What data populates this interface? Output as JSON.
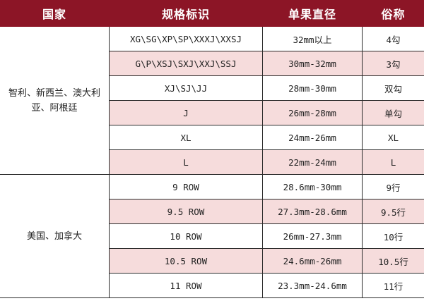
{
  "headers": [
    "国家",
    "规格标识",
    "单果直径",
    "俗称"
  ],
  "colors": {
    "header_bg": "#8c1526",
    "alt_row_bg": "#f6dcdc"
  },
  "groups": [
    {
      "country": "智利、新西兰、澳大利亚、阿根廷",
      "rows": [
        {
          "spec": "XG\\SG\\XP\\SP\\XXXJ\\XXSJ",
          "diameter": "32mm以上",
          "name": "4勾"
        },
        {
          "spec": "G\\P\\XSJ\\SXJ\\XXJ\\SSJ",
          "diameter": "30mm-32mm",
          "name": "3勾"
        },
        {
          "spec": "XJ\\SJ\\JJ",
          "diameter": "28mm-30mm",
          "name": "双勾"
        },
        {
          "spec": "J",
          "diameter": "26mm-28mm",
          "name": "单勾"
        },
        {
          "spec": "XL",
          "diameter": "24mm-26mm",
          "name": "XL"
        },
        {
          "spec": "L",
          "diameter": "22mm-24mm",
          "name": "L"
        }
      ]
    },
    {
      "country": "美国、加拿大",
      "rows": [
        {
          "spec": "9 ROW",
          "diameter": "28.6mm-30mm",
          "name": "9行"
        },
        {
          "spec": "9.5 ROW",
          "diameter": "27.3mm-28.6mm",
          "name": "9.5行"
        },
        {
          "spec": "10 ROW",
          "diameter": "26mm-27.3mm",
          "name": "10行"
        },
        {
          "spec": "10.5 ROW",
          "diameter": "24.6mm-26mm",
          "name": "10.5行"
        },
        {
          "spec": "11 ROW",
          "diameter": "23.3mm-24.6mm",
          "name": "11行"
        }
      ]
    }
  ]
}
